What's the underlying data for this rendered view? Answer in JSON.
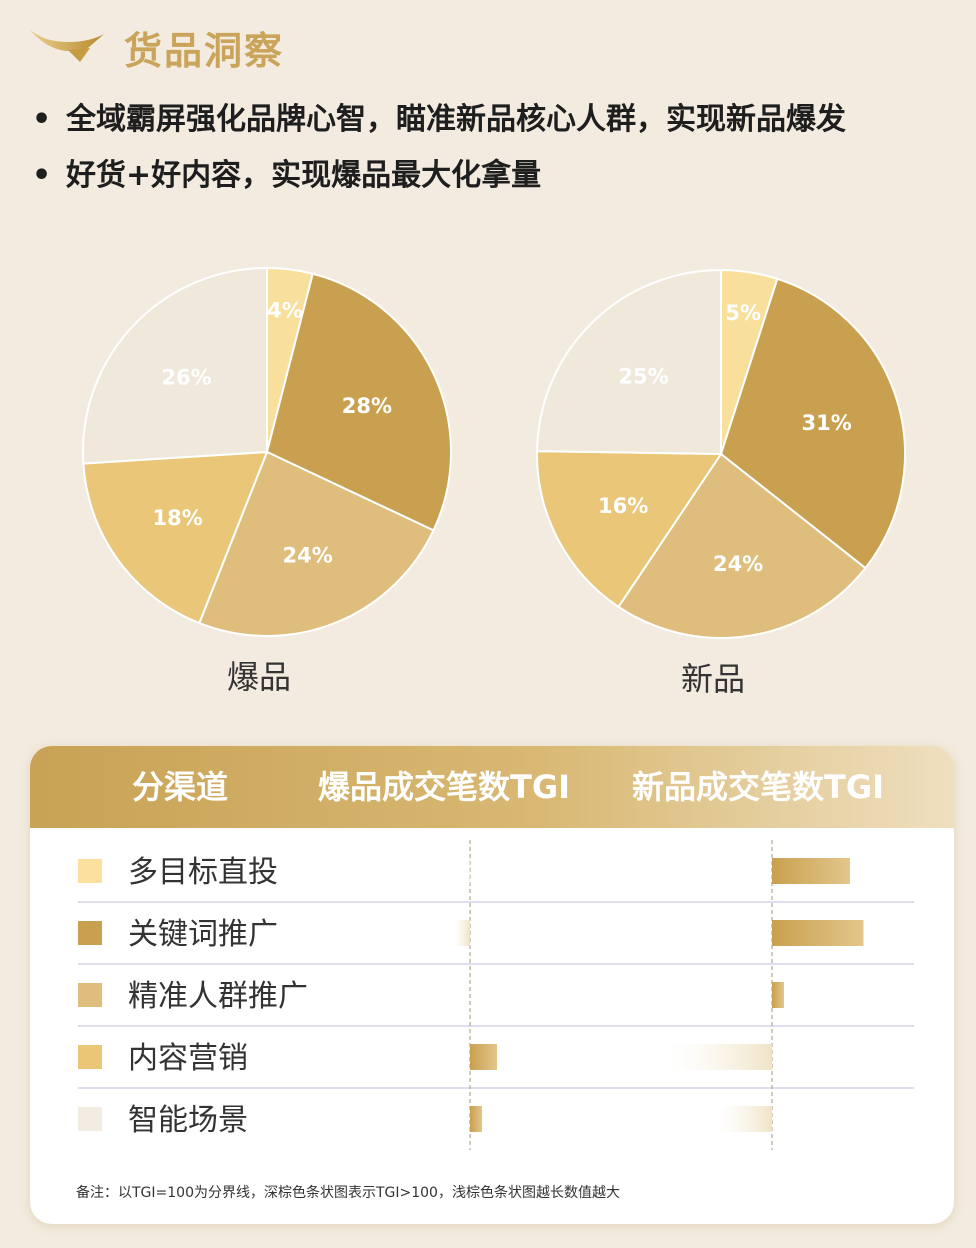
{
  "header": {
    "title": "货品洞察",
    "logo": "gold-swoosh-logo"
  },
  "bullets": [
    "全域霸屏强化品牌心智，瞄准新品核心人群，实现新品爆发",
    "好货+好内容，实现爆品最大化拿量"
  ],
  "chart_data": [
    {
      "type": "pie",
      "title": "爆品",
      "categories": [
        "多目标直投",
        "关键词推广",
        "精准人群推广",
        "内容营销",
        "智能场景"
      ],
      "values": [
        4,
        28,
        24,
        18,
        26
      ],
      "labels": [
        "4%",
        "28%",
        "24%",
        "18%",
        "26%"
      ],
      "colors": [
        "#f9df9c",
        "#c9a04f",
        "#dfbd7c",
        "#e9c678",
        "#f0e8db"
      ]
    },
    {
      "type": "pie",
      "title": "新品",
      "categories": [
        "多目标直投",
        "关键词推广",
        "精准人群推广",
        "内容营销",
        "智能场景"
      ],
      "values": [
        5,
        31,
        24,
        16,
        25
      ],
      "labels": [
        "5%",
        "31%",
        "24%",
        "16%",
        "25%"
      ],
      "colors": [
        "#f9df9c",
        "#c9a04f",
        "#dfbd7c",
        "#e9c678",
        "#f0e8db"
      ]
    },
    {
      "type": "bar",
      "orientation": "horizontal",
      "baseline": 100,
      "categories": [
        "多目标直投",
        "关键词推广",
        "精准人群推广",
        "内容营销",
        "智能场景"
      ],
      "category_colors": [
        "#fbe09e",
        "#c9a04f",
        "#dfbd7c",
        "#ebc676",
        "#f2ece2"
      ],
      "series": [
        {
          "name": "爆品成交笔数TGI",
          "values": [
            99,
            89,
            100,
            118,
            108
          ]
        },
        {
          "name": "新品成交笔数TGI",
          "values": [
            152,
            161,
            108,
            31,
            63
          ]
        }
      ]
    }
  ],
  "table": {
    "headers": [
      "分渠道",
      "爆品成交笔数TGI",
      "新品成交笔数TGI"
    ],
    "note": "备注：以TGI=100为分界线，深棕色条状图表示TGI>100，浅棕色条状图越长数值越大"
  },
  "colors": {
    "accent": "#c9a45a",
    "background": "#f3ebdf",
    "divider": "#d6d2ea"
  }
}
